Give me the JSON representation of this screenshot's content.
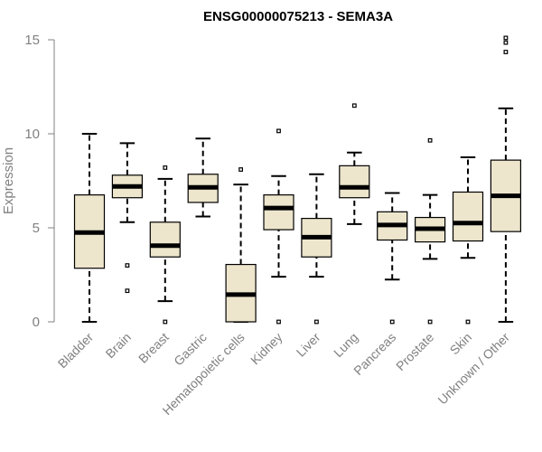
{
  "chart_data": {
    "type": "box",
    "title": "ENSG00000075213 - SEMA3A",
    "xlabel": "",
    "ylabel": "Expression",
    "ylim": [
      0,
      15
    ],
    "yticks": [
      0,
      5,
      10,
      15
    ],
    "colors": {
      "box_fill": "#ede5cc",
      "box_stroke": "#000000",
      "axis": "#808080",
      "text": "#808080"
    },
    "categories": [
      "Bladder",
      "Brain",
      "Breast",
      "Gastric",
      "Hematopoietic cells",
      "Kidney",
      "Liver",
      "Lung",
      "Pancreas",
      "Prostate",
      "Skin",
      "Unknown / Other"
    ],
    "boxes": [
      {
        "category": "Bladder",
        "whisker_low": 0.0,
        "q1": 2.85,
        "median": 4.75,
        "q3": 6.75,
        "whisker_high": 10.0,
        "outliers": []
      },
      {
        "category": "Brain",
        "whisker_low": 5.3,
        "q1": 6.6,
        "median": 7.2,
        "q3": 7.8,
        "whisker_high": 9.5,
        "outliers": [
          3.0,
          1.65
        ]
      },
      {
        "category": "Breast",
        "whisker_low": 1.1,
        "q1": 3.45,
        "median": 4.05,
        "q3": 5.3,
        "whisker_high": 7.6,
        "outliers": [
          8.2,
          0.0
        ]
      },
      {
        "category": "Gastric",
        "whisker_low": 5.6,
        "q1": 6.35,
        "median": 7.15,
        "q3": 7.85,
        "whisker_high": 9.75,
        "outliers": []
      },
      {
        "category": "Hematopoietic cells",
        "whisker_low": 0.0,
        "q1": 0.0,
        "median": 1.45,
        "q3": 3.05,
        "whisker_high": 7.3,
        "outliers": [
          8.1
        ]
      },
      {
        "category": "Kidney",
        "whisker_low": 2.4,
        "q1": 4.9,
        "median": 6.05,
        "q3": 6.75,
        "whisker_high": 7.75,
        "outliers": [
          10.15,
          0.0
        ]
      },
      {
        "category": "Liver",
        "whisker_low": 2.4,
        "q1": 3.45,
        "median": 4.5,
        "q3": 5.5,
        "whisker_high": 7.85,
        "outliers": [
          0.0
        ]
      },
      {
        "category": "Lung",
        "whisker_low": 5.2,
        "q1": 6.6,
        "median": 7.15,
        "q3": 8.3,
        "whisker_high": 9.0,
        "outliers": [
          11.5
        ]
      },
      {
        "category": "Pancreas",
        "whisker_low": 2.25,
        "q1": 4.35,
        "median": 5.15,
        "q3": 5.85,
        "whisker_high": 6.85,
        "outliers": [
          0.0
        ]
      },
      {
        "category": "Prostate",
        "whisker_low": 3.35,
        "q1": 4.25,
        "median": 4.95,
        "q3": 5.55,
        "whisker_high": 6.75,
        "outliers": [
          9.65,
          0.0
        ]
      },
      {
        "category": "Skin",
        "whisker_low": 3.4,
        "q1": 4.3,
        "median": 5.25,
        "q3": 6.9,
        "whisker_high": 8.75,
        "outliers": [
          0.0
        ]
      },
      {
        "category": "Unknown / Other",
        "whisker_low": 0.0,
        "q1": 4.8,
        "median": 6.7,
        "q3": 8.6,
        "whisker_high": 11.35,
        "outliers": [
          15.1,
          14.85,
          14.35
        ]
      }
    ]
  }
}
